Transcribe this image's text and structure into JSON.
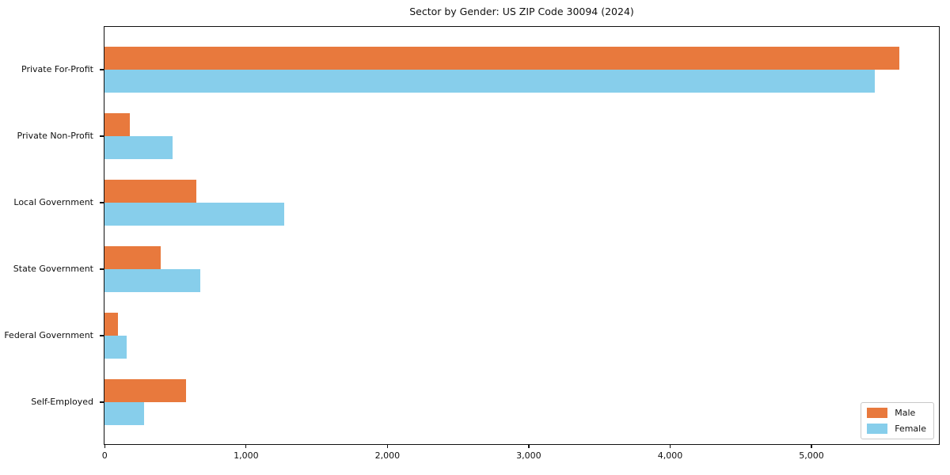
{
  "title": "Sector by Gender: US ZIP Code 30094 (2024)",
  "chart_data": {
    "type": "bar",
    "orientation": "horizontal",
    "title": "Sector by Gender: US ZIP Code 30094 (2024)",
    "xlabel": "",
    "ylabel": "",
    "categories": [
      "Private For-Profit",
      "Private Non-Profit",
      "Local Government",
      "State Government",
      "Federal Government",
      "Self-Employed"
    ],
    "series": [
      {
        "name": "Male",
        "color": "#E8793D",
        "values": [
          5625,
          180,
          650,
          400,
          95,
          575
        ]
      },
      {
        "name": "Female",
        "color": "#87CEEB",
        "values": [
          5450,
          480,
          1270,
          675,
          155,
          280
        ]
      }
    ],
    "xlim": [
      0,
      5900
    ],
    "xticks": [
      0,
      1000,
      2000,
      3000,
      4000,
      5000
    ],
    "xtick_labels": [
      "0",
      "1,000",
      "2,000",
      "3,000",
      "4,000",
      "5,000"
    ],
    "grid": false,
    "legend_position": "lower right",
    "axis_color": "#111111"
  },
  "legend": {
    "items": [
      {
        "label": "Male",
        "color": "#E8793D"
      },
      {
        "label": "Female",
        "color": "#87CEEB"
      }
    ]
  }
}
